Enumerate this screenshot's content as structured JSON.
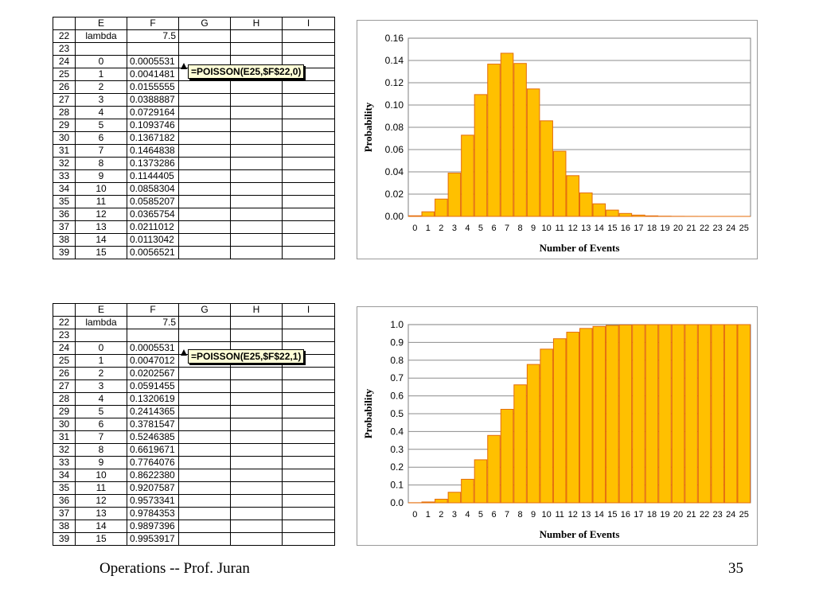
{
  "sheets": [
    {
      "col_headers": [
        "E",
        "F",
        "G",
        "H",
        "I"
      ],
      "rows": [
        {
          "num": "22",
          "e": "lambda",
          "f": "7.5"
        },
        {
          "num": "23",
          "e": "",
          "f": ""
        },
        {
          "num": "24",
          "e": "0",
          "f": "0.0005531"
        },
        {
          "num": "25",
          "e": "1",
          "f": "0.0041481"
        },
        {
          "num": "26",
          "e": "2",
          "f": "0.0155555"
        },
        {
          "num": "27",
          "e": "3",
          "f": "0.0388887"
        },
        {
          "num": "28",
          "e": "4",
          "f": "0.0729164"
        },
        {
          "num": "29",
          "e": "5",
          "f": "0.1093746"
        },
        {
          "num": "30",
          "e": "6",
          "f": "0.1367182"
        },
        {
          "num": "31",
          "e": "7",
          "f": "0.1464838"
        },
        {
          "num": "32",
          "e": "8",
          "f": "0.1373286"
        },
        {
          "num": "33",
          "e": "9",
          "f": "0.1144405"
        },
        {
          "num": "34",
          "e": "10",
          "f": "0.0858304"
        },
        {
          "num": "35",
          "e": "11",
          "f": "0.0585207"
        },
        {
          "num": "36",
          "e": "12",
          "f": "0.0365754"
        },
        {
          "num": "37",
          "e": "13",
          "f": "0.0211012"
        },
        {
          "num": "38",
          "e": "14",
          "f": "0.0113042"
        },
        {
          "num": "39",
          "e": "15",
          "f": "0.0056521"
        }
      ],
      "callout": "=POISSON(E25,$F$22,0)"
    },
    {
      "col_headers": [
        "E",
        "F",
        "G",
        "H",
        "I"
      ],
      "rows": [
        {
          "num": "22",
          "e": "lambda",
          "f": "7.5"
        },
        {
          "num": "23",
          "e": "",
          "f": ""
        },
        {
          "num": "24",
          "e": "0",
          "f": "0.0005531"
        },
        {
          "num": "25",
          "e": "1",
          "f": "0.0047012"
        },
        {
          "num": "26",
          "e": "2",
          "f": "0.0202567"
        },
        {
          "num": "27",
          "e": "3",
          "f": "0.0591455"
        },
        {
          "num": "28",
          "e": "4",
          "f": "0.1320619"
        },
        {
          "num": "29",
          "e": "5",
          "f": "0.2414365"
        },
        {
          "num": "30",
          "e": "6",
          "f": "0.3781547"
        },
        {
          "num": "31",
          "e": "7",
          "f": "0.5246385"
        },
        {
          "num": "32",
          "e": "8",
          "f": "0.6619671"
        },
        {
          "num": "33",
          "e": "9",
          "f": "0.7764076"
        },
        {
          "num": "34",
          "e": "10",
          "f": "0.8622380"
        },
        {
          "num": "35",
          "e": "11",
          "f": "0.9207587"
        },
        {
          "num": "36",
          "e": "12",
          "f": "0.9573341"
        },
        {
          "num": "37",
          "e": "13",
          "f": "0.9784353"
        },
        {
          "num": "38",
          "e": "14",
          "f": "0.9897396"
        },
        {
          "num": "39",
          "e": "15",
          "f": "0.9953917"
        }
      ],
      "callout": "=POISSON(E25,$F$22,1)"
    }
  ],
  "chart_data": [
    {
      "type": "bar",
      "categories": [
        "0",
        "1",
        "2",
        "3",
        "4",
        "5",
        "6",
        "7",
        "8",
        "9",
        "10",
        "11",
        "12",
        "13",
        "14",
        "15",
        "16",
        "17",
        "18",
        "19",
        "20",
        "21",
        "22",
        "23",
        "24",
        "25"
      ],
      "values": [
        0.0005531,
        0.0041481,
        0.0155555,
        0.0388887,
        0.0729164,
        0.1093746,
        0.1367182,
        0.1464838,
        0.1373286,
        0.1144405,
        0.0858304,
        0.0585207,
        0.0365754,
        0.0211012,
        0.0113042,
        0.0056521,
        0.0026495,
        0.0011689,
        0.000487,
        0.0001922,
        7.21e-05,
        2.58e-05,
        8.8e-06,
        2.9e-06,
        9e-07,
        3e-07
      ],
      "ylim": [
        0,
        0.16
      ],
      "yticks": [
        "0.00",
        "0.02",
        "0.04",
        "0.06",
        "0.08",
        "0.10",
        "0.12",
        "0.14",
        "0.16"
      ],
      "ylabel": "Probability",
      "xlabel": "Number of Events",
      "bar_color": "#ffc000",
      "bar_edge": "#e46c0a",
      "grid": true
    },
    {
      "type": "bar",
      "categories": [
        "0",
        "1",
        "2",
        "3",
        "4",
        "5",
        "6",
        "7",
        "8",
        "9",
        "10",
        "11",
        "12",
        "13",
        "14",
        "15",
        "16",
        "17",
        "18",
        "19",
        "20",
        "21",
        "22",
        "23",
        "24",
        "25"
      ],
      "values": [
        0.0005531,
        0.0047012,
        0.0202567,
        0.0591455,
        0.1320619,
        0.2414365,
        0.3781547,
        0.5246385,
        0.6619671,
        0.7764076,
        0.862238,
        0.9207587,
        0.9573341,
        0.9784353,
        0.9897396,
        0.9953917,
        0.9980412,
        0.9992101,
        0.9996971,
        0.9998893,
        0.9999614,
        0.9999872,
        0.999996,
        0.9999989,
        0.9999998,
        1.0
      ],
      "ylim": [
        0,
        1.0
      ],
      "yticks": [
        "0.0",
        "0.1",
        "0.2",
        "0.3",
        "0.4",
        "0.5",
        "0.6",
        "0.7",
        "0.8",
        "0.9",
        "1.0"
      ],
      "ylabel": "Probability",
      "xlabel": "Number of Events",
      "bar_color": "#ffc000",
      "bar_edge": "#e46c0a",
      "grid": true
    }
  ],
  "footer": {
    "left": "Operations -- Prof. Juran",
    "page": "35"
  }
}
